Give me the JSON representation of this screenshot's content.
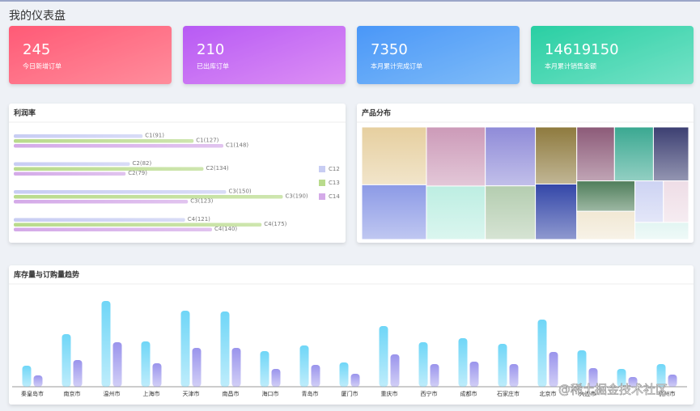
{
  "header": {
    "title": "我的仪表盘"
  },
  "cards": [
    {
      "value": 245,
      "label": "今日新增订单"
    },
    {
      "value": 210,
      "label": "已出库订单"
    },
    {
      "value": 7350,
      "label": "本月累计完成订单"
    },
    {
      "value": 14619150,
      "label": "本月累计销售金额"
    }
  ],
  "chart_data": [
    {
      "type": "hbar",
      "title": "利润率",
      "xlim": [
        0,
        200
      ],
      "series": [
        {
          "name": "C12",
          "color": "#c8cdf3",
          "values": [
            91,
            82,
            150,
            121
          ],
          "value_labels": [
            "C1(91)",
            "C2(82)",
            "C3(150)",
            "C4(121)"
          ]
        },
        {
          "name": "C13",
          "color": "#b9db8c",
          "values": [
            127,
            134,
            190,
            175
          ],
          "value_labels": [
            "C1(127)",
            "C2(134)",
            "C3(190)",
            "C4(175)"
          ]
        },
        {
          "name": "C14",
          "color": "#d4aae8",
          "values": [
            148,
            79,
            123,
            140
          ],
          "value_labels": [
            "C1(148)",
            "C2(79)",
            "C3(123)",
            "C4(140)"
          ]
        }
      ]
    },
    {
      "type": "treemap",
      "title": "产品分布",
      "children": [
        {
          "children": [
            {
              "value": 57,
              "color": "#e6cf9f"
            },
            {
              "value": 54,
              "color": "#8c9ae6"
            }
          ]
        },
        {
          "children": [
            {
              "value": 53,
              "color": "#cc9ab8"
            },
            {
              "value": 48,
              "color": "#bdeee2"
            }
          ]
        },
        {
          "children": [
            {
              "value": 45,
              "color": "#8f8bd8"
            },
            {
              "value": 41,
              "color": "#b4cdb0"
            }
          ]
        },
        {
          "children": [
            {
              "value": 36,
              "color": "#8e7a3e"
            },
            {
              "value": 35,
              "color": "#3346a8"
            }
          ]
        },
        {
          "children": [
            {
              "children": [
                {
                  "value": 31,
                  "color": "#8c5a78"
                },
                {
                  "value": 32,
                  "color": "#3aa891"
                },
                {
                  "value": 29,
                  "color": "#3c3f72"
                }
              ]
            },
            {
              "children": [
                {
                  "children": [
                    {
                      "value": 27,
                      "color": "#4f7e5a"
                    },
                    {
                      "value": 25,
                      "color": "#f1e8d4"
                    }
                  ]
                },
                {
                  "children": [
                    {
                      "children": [
                        {
                          "value": 18,
                          "color": "#cdd3f3"
                        },
                        {
                          "value": 16,
                          "color": "#eedde6"
                        }
                      ]
                    },
                    {
                      "value": 14,
                      "color": "#e2f5f2"
                    }
                  ]
                }
              ]
            }
          ]
        }
      ]
    },
    {
      "type": "bar",
      "title": "库存量与订购量趋势",
      "ylim": [
        0,
        120
      ],
      "categories": [
        "秦皇岛市",
        "南京市",
        "温州市",
        "上海市",
        "天津市",
        "南昌市",
        "海口市",
        "青岛市",
        "厦门市",
        "重庆市",
        "西宁市",
        "成都市",
        "石家庄市",
        "北京市",
        "大连市",
        null,
        "杭州市"
      ],
      "series": [
        {
          "color": "#6fd6f7",
          "values": [
            26,
            65,
            106,
            56,
            94,
            93,
            44,
            51,
            30,
            75,
            55,
            60,
            53,
            83,
            45,
            22,
            28
          ]
        },
        {
          "color": "#9a94ec",
          "values": [
            14,
            33,
            55,
            29,
            48,
            48,
            22,
            27,
            16,
            40,
            28,
            31,
            28,
            43,
            23,
            12,
            15
          ]
        }
      ]
    }
  ],
  "watermark": "@稀土掘金技术社区"
}
